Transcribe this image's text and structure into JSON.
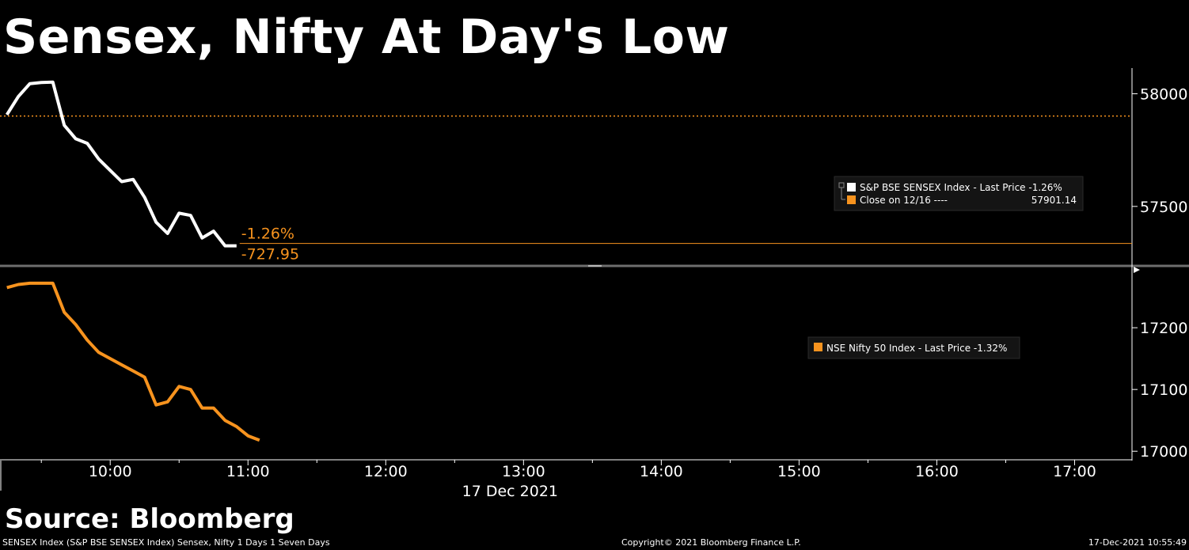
{
  "headline": "Sensex, Nifty At Day's Low",
  "source": "Source: Bloomberg",
  "footer": {
    "left": "SENSEX Index (S&P BSE SENSEX Index) Sensex, Nifty 1 Days 1 Seven Days",
    "center": "Copyright© 2021 Bloomberg Finance L.P.",
    "right": "17-Dec-2021 10:55:49"
  },
  "colors": {
    "sensex": "#ffffff",
    "nifty": "#f7931e",
    "close_line": "#f7931e",
    "background": "#000000"
  },
  "chart_data": [
    {
      "type": "line",
      "series": [
        {
          "name": "S&P BSE SENSEX Index - Last Price -1.26%",
          "color": "#ffffff",
          "points": [
            [
              "09:15",
              57907
            ],
            [
              "09:20",
              57988
            ],
            [
              "09:25",
              58045
            ],
            [
              "09:30",
              58050
            ],
            [
              "09:35",
              58052
            ],
            [
              "09:40",
              57860
            ],
            [
              "09:45",
              57800
            ],
            [
              "09:50",
              57780
            ],
            [
              "09:55",
              57710
            ],
            [
              "10:00",
              57660
            ],
            [
              "10:05",
              57610
            ],
            [
              "10:10",
              57620
            ],
            [
              "10:15",
              57540
            ],
            [
              "10:20",
              57430
            ],
            [
              "10:25",
              57380
            ],
            [
              "10:30",
              57470
            ],
            [
              "10:35",
              57460
            ],
            [
              "10:40",
              57360
            ],
            [
              "10:45",
              57390
            ],
            [
              "10:50",
              57325
            ],
            [
              "10:55",
              57325
            ]
          ]
        },
        {
          "name": "Close on 12/16 ----",
          "color": "#f7931e",
          "value": 57901.14
        }
      ],
      "annotations": [
        "-1.26%",
        "-727.95"
      ],
      "legend": [
        {
          "label": "S&P BSE SENSEX Index - Last Price -1.26%",
          "value": ""
        },
        {
          "label": "Close on 12/16 ----",
          "value": "57901.14"
        }
      ],
      "y_ticks": [
        "58000",
        "57500"
      ],
      "ylim": [
        57250,
        58100
      ]
    },
    {
      "type": "line",
      "series": [
        {
          "name": "NSE Nifty 50 Index - Last Price -1.32%",
          "color": "#f7931e",
          "points": [
            [
              "09:15",
              17265
            ],
            [
              "09:20",
              17270
            ],
            [
              "09:25",
              17272
            ],
            [
              "09:30",
              17272
            ],
            [
              "09:35",
              17272
            ],
            [
              "09:40",
              17225
            ],
            [
              "09:45",
              17205
            ],
            [
              "09:50",
              17180
            ],
            [
              "09:55",
              17160
            ],
            [
              "10:00",
              17150
            ],
            [
              "10:05",
              17140
            ],
            [
              "10:10",
              17130
            ],
            [
              "10:15",
              17120
            ],
            [
              "10:20",
              17075
            ],
            [
              "10:25",
              17080
            ],
            [
              "10:30",
              17105
            ],
            [
              "10:35",
              17100
            ],
            [
              "10:40",
              17070
            ],
            [
              "10:45",
              17070
            ],
            [
              "10:50",
              17050
            ],
            [
              "10:55",
              17040
            ],
            [
              "11:00",
              17025
            ],
            [
              "11:05",
              17018
            ]
          ]
        }
      ],
      "legend": [
        {
          "label": "NSE Nifty 50 Index - Last Price -1.32%"
        }
      ],
      "y_ticks": [
        "17200",
        "17100",
        "17000"
      ],
      "ylim": [
        16990,
        17295
      ]
    }
  ],
  "x_axis": {
    "ticks": [
      "10:00",
      "11:00",
      "12:00",
      "13:00",
      "14:00",
      "15:00",
      "16:00",
      "17:00"
    ],
    "date": "17 Dec 2021",
    "range": [
      "09:12",
      "17:25"
    ]
  }
}
